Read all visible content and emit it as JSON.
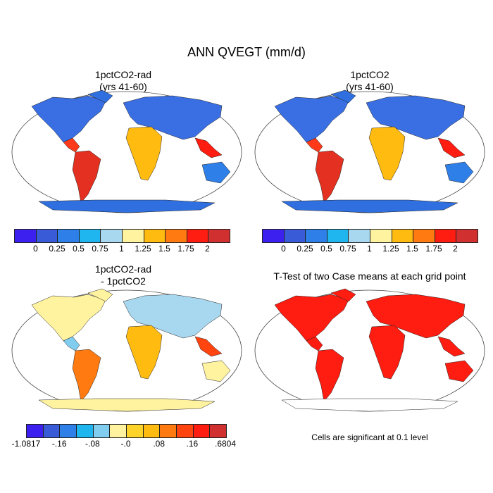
{
  "title": "ANN QVEGT (mm/d)",
  "panels": {
    "p1": {
      "title_line1": "1pctCO2-rad",
      "title_line2": "(yrs 41-60)"
    },
    "p2": {
      "title_line1": "1pctCO2",
      "title_line2": "(yrs 41-60)"
    },
    "p3": {
      "title_line1": "1pctCO2-rad",
      "title_line2": "- 1pctCO2"
    },
    "p4": {
      "title_line1": "T-Test of two Case means at each grid point"
    }
  },
  "colorbars": {
    "top": {
      "colors": [
        "#3b20f0",
        "#3a5bd7",
        "#2f7fe8",
        "#1fb6ef",
        "#a8d8ef",
        "#fff3a0",
        "#ffbb10",
        "#ff7a10",
        "#ff1c10",
        "#d0302f"
      ],
      "labels": [
        "0",
        "0.25",
        "0.5",
        "0.75",
        "1",
        "1.25",
        "1.5",
        "1.75",
        "2"
      ]
    },
    "diff": {
      "colors": [
        "#3b20f0",
        "#3a5bd7",
        "#2f7fe8",
        "#1fb6ef",
        "#80cdef",
        "#fff3a0",
        "#ffd42a",
        "#ffbb10",
        "#ff7a10",
        "#ff4410",
        "#ff1c10",
        "#d0302f"
      ],
      "labels": [
        "-1.0817",
        "-.16",
        "-.08",
        "-.0",
        ".08",
        ".16",
        ".6804"
      ]
    }
  },
  "significance_note": "Cells are significant at 0.1 level",
  "map_colors": {
    "ocean": "#ffffff",
    "antarctica_top": "#2f6fe0",
    "antarctica_diff": "#fff3a0",
    "significant": "#ff1c10"
  }
}
